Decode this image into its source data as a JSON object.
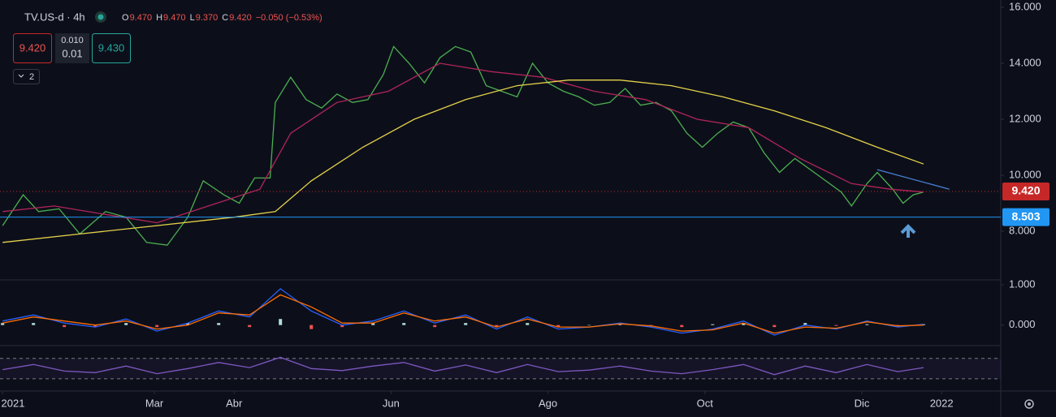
{
  "header": {
    "symbol": "TV.US-d · 4h",
    "ohlc": [
      {
        "label": "O",
        "value": "9.470"
      },
      {
        "label": "H",
        "value": "9.470"
      },
      {
        "label": "L",
        "value": "9.370"
      },
      {
        "label": "C",
        "value": "9.420"
      }
    ],
    "change": "−0.050 (−0.53%)",
    "sell": "9.420",
    "spread_top": "0.010",
    "spread_bottom": "0.01",
    "buy": "9.430",
    "indicators": "2"
  },
  "chart_data": [
    {
      "type": "line",
      "xlim": [
        -1,
        388
      ],
      "ylim": [
        6.26,
        16.26
      ],
      "xticks": [
        {
          "value": 0,
          "label": "2021"
        },
        {
          "value": 59,
          "label": "Mar"
        },
        {
          "value": 90,
          "label": "Abr"
        },
        {
          "value": 151,
          "label": "Jun"
        },
        {
          "value": 212,
          "label": "Ago"
        },
        {
          "value": 273,
          "label": "Oct"
        },
        {
          "value": 334,
          "label": "Dic"
        },
        {
          "value": 365,
          "label": "2022"
        }
      ],
      "yticks": [
        {
          "value": 16,
          "label": "16.000"
        },
        {
          "value": 14,
          "label": "14.000"
        },
        {
          "value": 12,
          "label": "12.000"
        },
        {
          "value": 10,
          "label": "10.000"
        },
        {
          "value": 8,
          "label": "8.000"
        }
      ],
      "series": [
        {
          "color": "#4caf50",
          "x": [
            0,
            8,
            14,
            22,
            30,
            40,
            48,
            56,
            64,
            72,
            78,
            86,
            92,
            98,
            104,
            106,
            112,
            118,
            124,
            130,
            136,
            142,
            148,
            152,
            158,
            164,
            170,
            176,
            182,
            188,
            194,
            200,
            206,
            212,
            218,
            224,
            230,
            236,
            242,
            248,
            254,
            260,
            266,
            272,
            278,
            284,
            290,
            296,
            302,
            308,
            314,
            320,
            326,
            330,
            336,
            340,
            346,
            350,
            354,
            358
          ],
          "values": [
            8.2,
            9.3,
            8.7,
            8.8,
            7.9,
            8.7,
            8.5,
            7.6,
            7.5,
            8.5,
            9.8,
            9.3,
            9.0,
            9.9,
            9.9,
            12.6,
            13.5,
            12.7,
            12.4,
            12.9,
            12.6,
            12.7,
            13.6,
            14.6,
            14.0,
            13.3,
            14.2,
            14.6,
            14.4,
            13.2,
            13.0,
            12.8,
            14.0,
            13.3,
            13.0,
            12.8,
            12.5,
            12.6,
            13.1,
            12.5,
            12.6,
            12.3,
            11.5,
            11.0,
            11.5,
            11.9,
            11.7,
            10.8,
            10.1,
            10.6,
            10.2,
            9.8,
            9.4,
            8.9,
            9.7,
            10.1,
            9.5,
            9.0,
            9.3,
            9.4
          ]
        },
        {
          "color": "#b2245a",
          "x": [
            0,
            20,
            40,
            60,
            80,
            100,
            112,
            130,
            150,
            170,
            190,
            210,
            230,
            250,
            270,
            290,
            310,
            330,
            345,
            358
          ],
          "values": [
            8.7,
            8.9,
            8.6,
            8.3,
            8.9,
            9.5,
            11.5,
            12.6,
            13.0,
            14.0,
            13.7,
            13.5,
            13.0,
            12.7,
            12.0,
            11.7,
            10.6,
            9.7,
            9.5,
            9.4
          ]
        },
        {
          "color": "#e6d24a",
          "x": [
            0,
            30,
            60,
            90,
            106,
            120,
            140,
            160,
            180,
            200,
            220,
            240,
            260,
            280,
            300,
            320,
            340,
            358
          ],
          "values": [
            7.6,
            7.9,
            8.2,
            8.5,
            8.7,
            9.8,
            11.0,
            12.0,
            12.7,
            13.2,
            13.4,
            13.4,
            13.2,
            12.8,
            12.3,
            11.7,
            11.0,
            10.4
          ]
        },
        {
          "color": "#4a7fd4",
          "x": [
            340,
            368
          ],
          "values": [
            10.2,
            9.5
          ]
        }
      ],
      "price_lines": [
        {
          "value": 9.42,
          "label": "9.420",
          "color": "#c62828",
          "style": "dotted"
        },
        {
          "value": 8.503,
          "label": "8.503",
          "color": "#2196f3",
          "style": "solid"
        }
      ]
    },
    {
      "type": "macd",
      "xlim": [
        -1,
        388
      ],
      "ylim": [
        -0.51,
        1.12
      ],
      "yticks": [
        {
          "value": 1,
          "label": "1.000"
        },
        {
          "value": 0,
          "label": "0.000"
        }
      ],
      "series": [
        {
          "type": "histogram",
          "color": "#b2dfdb",
          "negative_color": "#ef5350",
          "x": [
            0,
            12,
            24,
            36,
            48,
            60,
            72,
            84,
            96,
            108,
            120,
            132,
            144,
            156,
            168,
            180,
            192,
            204,
            216,
            228,
            240,
            252,
            264,
            276,
            288,
            300,
            312,
            324,
            336,
            348,
            358
          ],
          "values": [
            0.05,
            0.05,
            -0.05,
            -0.05,
            0.05,
            -0.05,
            0.05,
            0.05,
            -0.05,
            0.15,
            -0.1,
            -0.05,
            0.05,
            0.05,
            -0.05,
            0.05,
            -0.05,
            0.05,
            -0.05,
            0,
            0.02,
            -0.03,
            -0.05,
            0.02,
            0.05,
            -0.05,
            0.05,
            -0.02,
            0.02,
            -0.03,
            0.02
          ]
        },
        {
          "type": "line",
          "color": "#2962ff",
          "x": [
            0,
            12,
            24,
            36,
            48,
            60,
            72,
            84,
            96,
            108,
            120,
            132,
            144,
            156,
            168,
            180,
            192,
            204,
            216,
            228,
            240,
            252,
            264,
            276,
            288,
            300,
            312,
            324,
            336,
            348,
            358
          ],
          "values": [
            0.1,
            0.25,
            0.05,
            -0.05,
            0.15,
            -0.15,
            0.05,
            0.35,
            0.2,
            0.9,
            0.35,
            0.0,
            0.1,
            0.35,
            0.05,
            0.25,
            -0.1,
            0.2,
            -0.1,
            -0.05,
            0.05,
            -0.05,
            -0.2,
            -0.1,
            0.1,
            -0.25,
            0.0,
            -0.1,
            0.1,
            -0.05,
            0.02
          ]
        },
        {
          "type": "line",
          "color": "#ff6d00",
          "x": [
            0,
            12,
            24,
            36,
            48,
            60,
            72,
            84,
            96,
            108,
            120,
            132,
            144,
            156,
            168,
            180,
            192,
            204,
            216,
            228,
            240,
            252,
            264,
            276,
            288,
            300,
            312,
            324,
            336,
            348,
            358
          ],
          "values": [
            0.05,
            0.2,
            0.1,
            0.0,
            0.1,
            -0.1,
            0.0,
            0.3,
            0.25,
            0.75,
            0.45,
            0.05,
            0.05,
            0.3,
            0.1,
            0.2,
            -0.05,
            0.15,
            -0.05,
            -0.05,
            0.03,
            -0.02,
            -0.15,
            -0.12,
            0.05,
            -0.2,
            -0.05,
            -0.08,
            0.08,
            -0.02,
            0.0
          ]
        }
      ]
    },
    {
      "type": "rsi",
      "xlim": [
        -1,
        388
      ],
      "ylim": [
        9,
        92
      ],
      "bands": [
        70,
        30
      ],
      "series": [
        {
          "color": "#7e57c2",
          "x": [
            0,
            12,
            24,
            36,
            48,
            60,
            72,
            84,
            96,
            108,
            120,
            132,
            144,
            156,
            168,
            180,
            192,
            204,
            216,
            228,
            240,
            252,
            264,
            276,
            288,
            300,
            312,
            324,
            336,
            348,
            358
          ],
          "values": [
            48,
            58,
            45,
            42,
            55,
            40,
            50,
            62,
            52,
            72,
            50,
            46,
            55,
            62,
            45,
            57,
            42,
            58,
            44,
            47,
            55,
            45,
            40,
            48,
            58,
            38,
            55,
            42,
            58,
            44,
            52
          ]
        }
      ]
    }
  ]
}
